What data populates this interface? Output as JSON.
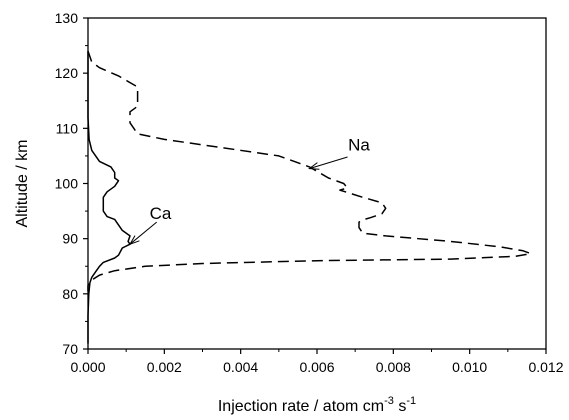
{
  "chart_data": {
    "type": "line",
    "xlabel": {
      "base": "Injection rate / atom cm",
      "exp1": "-3",
      "mid": " s",
      "exp2": "-1"
    },
    "ylabel": "Altitude / km",
    "xlim": [
      0,
      0.012
    ],
    "ylim": [
      70,
      130
    ],
    "xticks": [
      "0.000",
      "0.002",
      "0.004",
      "0.006",
      "0.008",
      "0.010",
      "0.012"
    ],
    "yticks": [
      "70",
      "80",
      "90",
      "100",
      "110",
      "120",
      "130"
    ],
    "grid": false,
    "series": [
      {
        "name": "Na",
        "style": "dashed",
        "points": [
          [
            0.0,
            124
          ],
          [
            0.0001,
            122
          ],
          [
            0.0003,
            121
          ],
          [
            0.0008,
            119.5
          ],
          [
            0.0013,
            117.5
          ],
          [
            0.0013,
            114
          ],
          [
            0.0011,
            113
          ],
          [
            0.0011,
            111
          ],
          [
            0.0013,
            109
          ],
          [
            0.002,
            108
          ],
          [
            0.0035,
            106.5
          ],
          [
            0.005,
            105
          ],
          [
            0.0058,
            103
          ],
          [
            0.0063,
            101
          ],
          [
            0.0067,
            100
          ],
          [
            0.0068,
            99.2
          ],
          [
            0.0066,
            98.8
          ],
          [
            0.0072,
            97.5
          ],
          [
            0.0077,
            96.5
          ],
          [
            0.0078,
            95.5
          ],
          [
            0.0077,
            94.5
          ],
          [
            0.0074,
            93.8
          ],
          [
            0.0072,
            93.4
          ],
          [
            0.0071,
            93
          ],
          [
            0.0071,
            92
          ],
          [
            0.0072,
            91
          ],
          [
            0.0078,
            90.5
          ],
          [
            0.0095,
            89.5
          ],
          [
            0.0108,
            88.5
          ],
          [
            0.0114,
            87.8
          ],
          [
            0.0116,
            87.3
          ],
          [
            0.0112,
            86.8
          ],
          [
            0.0095,
            86.3
          ],
          [
            0.006,
            86
          ],
          [
            0.003,
            85.5
          ],
          [
            0.0015,
            85
          ],
          [
            0.0007,
            84.2
          ],
          [
            0.0003,
            83.4
          ],
          [
            0.0001,
            82.5
          ],
          [
            0.0,
            81.5
          ],
          [
            0.0,
            80.5
          ]
        ]
      },
      {
        "name": "Ca",
        "style": "solid",
        "points": [
          [
            0.0,
            124
          ],
          [
            0.0,
            112
          ],
          [
            3e-05,
            108
          ],
          [
            0.0001,
            106
          ],
          [
            0.0003,
            104
          ],
          [
            0.0006,
            103
          ],
          [
            0.0007,
            102
          ],
          [
            0.0007,
            101
          ],
          [
            0.0008,
            100.5
          ],
          [
            0.0007,
            99.5
          ],
          [
            0.0005,
            98.5
          ],
          [
            0.0004,
            97.5
          ],
          [
            0.0004,
            96
          ],
          [
            0.0004,
            95
          ],
          [
            0.0005,
            94
          ],
          [
            0.0007,
            93.5
          ],
          [
            0.0008,
            92.5
          ],
          [
            0.0009,
            91.5
          ],
          [
            0.0011,
            90.5
          ],
          [
            0.00105,
            89.5
          ],
          [
            0.0011,
            89
          ],
          [
            0.0009,
            88.3
          ],
          [
            0.0008,
            87
          ],
          [
            0.0007,
            86.5
          ],
          [
            0.0004,
            85.7
          ],
          [
            0.0003,
            85
          ],
          [
            0.0002,
            84
          ],
          [
            0.0001,
            83
          ],
          [
            5e-05,
            82
          ],
          [
            2e-05,
            80
          ],
          [
            0.0,
            76
          ],
          [
            0.0,
            71
          ]
        ]
      }
    ],
    "annotations": [
      {
        "text": "Na",
        "label_at": [
          0.0071,
          106
        ],
        "arrow_from": [
          0.0068,
          104.8
        ],
        "arrow_to": [
          0.0058,
          102.7
        ]
      },
      {
        "text": "Ca",
        "label_at": [
          0.0019,
          93.6
        ],
        "arrow_from": [
          0.0018,
          93.0
        ],
        "arrow_to": [
          0.0011,
          89.0
        ]
      }
    ]
  }
}
